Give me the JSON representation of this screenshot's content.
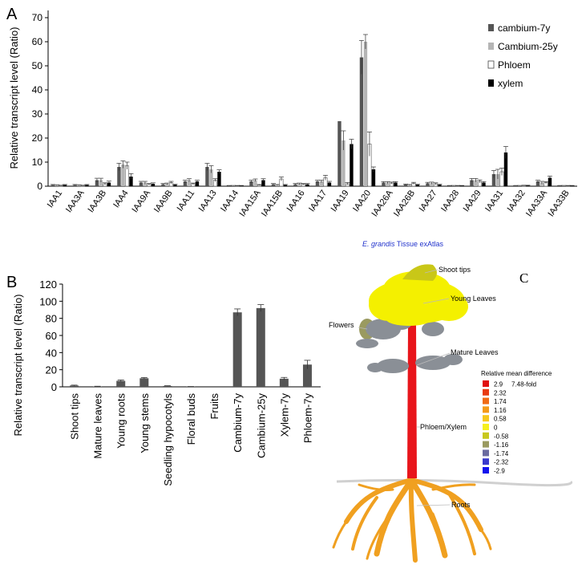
{
  "colors": {
    "cambium7": "#555555",
    "cambium25": "#b5b5b5",
    "phloem": "#ffffff",
    "xylem": "#000000",
    "panelB_bar": "#555555",
    "trunk": "#e8151b",
    "crown_yellow": "#f4f000",
    "shoot_olive": "#c9c718",
    "leaf_grey": "#8a8f96",
    "root_orange": "#f0a020",
    "atlas_title": "#2233cc"
  },
  "chart_data": [
    {
      "panel": "A",
      "type": "bar",
      "ylabel": "Relative transcript level (Ratio)",
      "ylim": [
        0,
        70
      ],
      "yticks": [
        "0",
        "10",
        "20",
        "30",
        "40",
        "50",
        "60",
        "70"
      ],
      "legend_position": "top-right",
      "categories": [
        "IAA1",
        "IAA3A",
        "IAA3B",
        "IAA4",
        "IAA9A",
        "IAA9B",
        "IAA11",
        "IAA13",
        "IAA14",
        "IAA15A",
        "IAA15B",
        "IAA16",
        "IAA17",
        "IAA19",
        "IAA20",
        "IAA26A",
        "IAA26B",
        "IAA27",
        "IAA28",
        "IAA29",
        "IAA31",
        "IAA32",
        "IAA33A",
        "IAA33B"
      ],
      "series": [
        {
          "name": "cambium-7y",
          "color_key": "cambium7",
          "values": [
            0.5,
            0.5,
            2.5,
            8,
            1.5,
            0.8,
            2,
            8,
            0.2,
            2,
            0.8,
            0.8,
            2,
            27,
            53.5,
            1.5,
            0.7,
            1.2,
            0.2,
            2.5,
            5,
            0.2,
            2,
            0.2
          ],
          "errors": [
            0.2,
            0.2,
            0.8,
            1.5,
            0.5,
            0.3,
            0.5,
            1.5,
            0.1,
            0.5,
            0.3,
            0.3,
            0.5,
            0,
            7,
            0.4,
            0.2,
            0.4,
            0.1,
            0.7,
            1.5,
            0.1,
            0.5,
            0.1
          ]
        },
        {
          "name": "Cambium-25y",
          "color_key": "cambium25",
          "values": [
            0.4,
            0.4,
            2.5,
            9,
            1.5,
            1,
            2.5,
            7,
            0.2,
            2.5,
            0.5,
            1,
            2,
            19,
            60,
            1.5,
            0.5,
            1.3,
            0.2,
            2.5,
            5,
            0.2,
            1.5,
            0.2
          ],
          "errors": [
            0.2,
            0.2,
            0.8,
            1.5,
            0.5,
            0.3,
            0.6,
            1.5,
            0.1,
            0.5,
            0.2,
            0.3,
            0.5,
            4,
            3,
            0.4,
            0.2,
            0.4,
            0.1,
            0.7,
            2,
            0.1,
            0.5,
            0.1
          ]
        },
        {
          "name": "Phloem",
          "color_key": "phloem",
          "values": [
            0.3,
            0.3,
            1,
            8.5,
            0.8,
            1.5,
            1,
            2.5,
            0.2,
            0.5,
            3,
            0.8,
            3.5,
            1,
            17.5,
            1.3,
            1.2,
            1,
            0.2,
            2,
            6,
            0.3,
            1.5,
            0.2
          ],
          "errors": [
            0.1,
            0.1,
            0.4,
            1.5,
            0.3,
            0.5,
            0.3,
            0.6,
            0.1,
            0.2,
            0.8,
            0.3,
            1,
            0.5,
            5,
            0.4,
            0.4,
            0.4,
            0.1,
            0.6,
            1.5,
            0.1,
            0.4,
            0.1
          ]
        },
        {
          "name": "xylem",
          "color_key": "xylem",
          "values": [
            0.5,
            0.5,
            1.5,
            4,
            1,
            0.6,
            2,
            6,
            0.2,
            2.5,
            0.5,
            0.8,
            1.5,
            17.5,
            7,
            1.5,
            0.6,
            0.6,
            0.2,
            1.5,
            14,
            0.3,
            3.5,
            0.2
          ],
          "errors": [
            0.2,
            0.2,
            0.6,
            1.2,
            0.4,
            0.2,
            0.5,
            0.8,
            0.1,
            0.6,
            0.2,
            0.3,
            0.5,
            2,
            1,
            0.4,
            0.2,
            0.2,
            0.1,
            0.4,
            2.5,
            0.1,
            0.7,
            0.1
          ]
        }
      ]
    },
    {
      "panel": "B",
      "type": "bar",
      "ylabel": "Relative transcript level (Ratio)",
      "ylim": [
        0,
        120
      ],
      "yticks": [
        "0",
        "20",
        "40",
        "60",
        "80",
        "100",
        "120"
      ],
      "categories": [
        "Shoot tips",
        "Mature leaves",
        "Young roots",
        "Young stems",
        "Seedling hypocotyls",
        "Floral buds",
        "Fruits",
        "Cambium-7y",
        "Cambium-25y",
        "Xylem-7y",
        "Phloem-7y"
      ],
      "series": [
        {
          "name": "Relative transcript level",
          "color_key": "panelB_bar",
          "values": [
            1.5,
            0.5,
            7,
            10,
            1,
            0.3,
            0,
            87,
            92,
            9.5,
            26
          ],
          "errors": [
            0.5,
            0.2,
            1,
            0.8,
            0.3,
            0.1,
            0,
            4,
            4,
            1.5,
            5
          ]
        }
      ]
    }
  ],
  "panels": {
    "a_letter": "A",
    "b_letter": "B",
    "c_letter": "C"
  },
  "atlas": {
    "title_species": "E. grandis",
    "title_rest": " Tissue exAtlas",
    "labels": {
      "shoot_tips": "Shoot tips",
      "young_leaves": "Young Leaves",
      "flowers": "Flowers",
      "mature_leaves": "Mature Leaves",
      "phloem_xylem": "Phloem/Xylem",
      "roots": "Roots"
    },
    "legend_title": "Relative mean difference",
    "fold_label": "7.48-fold",
    "scale": [
      {
        "value": "2.9",
        "color": "#e01010"
      },
      {
        "value": "2.32",
        "color": "#e83a12"
      },
      {
        "value": "1.74",
        "color": "#f06a14"
      },
      {
        "value": "1.16",
        "color": "#f49a18"
      },
      {
        "value": "0.58",
        "color": "#f6c81c"
      },
      {
        "value": "0",
        "color": "#f6f01e"
      },
      {
        "value": "-0.58",
        "color": "#c8c81e"
      },
      {
        "value": "-1.16",
        "color": "#9a9a60"
      },
      {
        "value": "-1.74",
        "color": "#6a6aa0"
      },
      {
        "value": "-2.32",
        "color": "#3a3acc"
      },
      {
        "value": "-2.9",
        "color": "#1212ee"
      }
    ]
  }
}
